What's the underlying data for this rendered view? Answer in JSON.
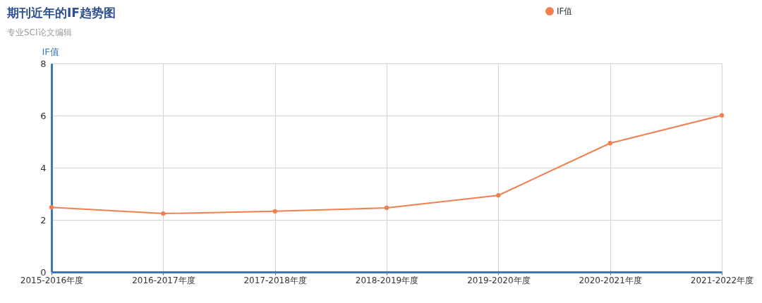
{
  "chart_data": {
    "type": "line",
    "title": "期刊近年的IF趋势图",
    "subtitle": "专业SCI论文编辑",
    "ylabel": "IF值",
    "categories": [
      "2015-2016年度",
      "2016-2017年度",
      "2017-2018年度",
      "2018-2019年度",
      "2019-2020年度",
      "2020-2021年度",
      "2021-2022年度"
    ],
    "series": [
      {
        "name": "IF值",
        "color": "#f0804f",
        "values": [
          2.48,
          2.24,
          2.33,
          2.46,
          2.94,
          4.94,
          6.01
        ]
      }
    ],
    "ylim": [
      0,
      8
    ],
    "yticks": [
      0,
      2,
      4,
      6,
      8
    ],
    "grid": true,
    "legend": "top right",
    "marker": "circle"
  }
}
